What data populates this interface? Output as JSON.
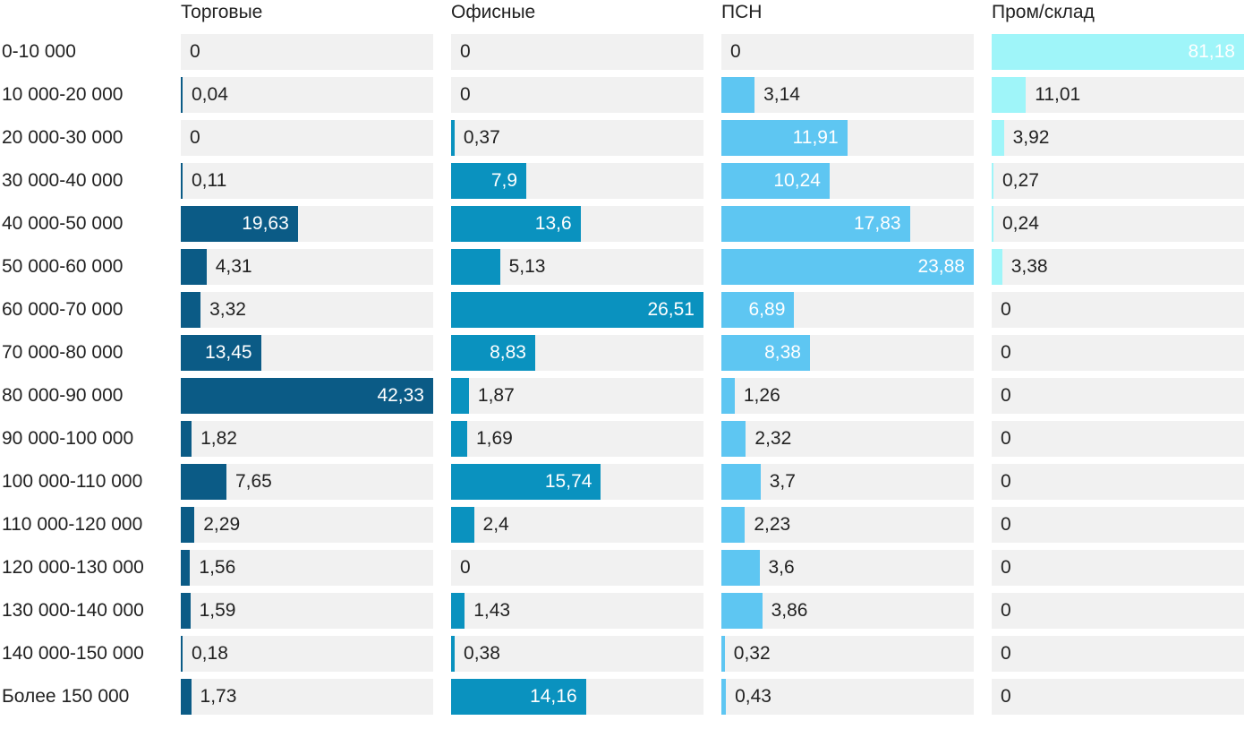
{
  "chart_data": {
    "type": "bar",
    "orientation": "horizontal",
    "layout": "small-multiples",
    "categories": [
      "0-10 000",
      "10 000-20 000",
      "20 000-30 000",
      "30 000-40 000",
      "40 000-50 000",
      "50 000-60 000",
      "60 000-70 000",
      "70 000-80 000",
      "80 000-90 000",
      "90 000-100 000",
      "100 000-110 000",
      "110 000-120 000",
      "120 000-130 000",
      "130 000-140 000",
      "140 000-150 000",
      "Более 150 000"
    ],
    "series": [
      {
        "name": "Торговые",
        "color": "#0b5b86",
        "max": 42.33,
        "values": [
          0,
          0.04,
          0,
          0.11,
          19.63,
          4.31,
          3.32,
          13.45,
          42.33,
          1.82,
          7.65,
          2.29,
          1.56,
          1.59,
          0.18,
          1.73
        ],
        "labels": [
          "0",
          "0,04",
          "0",
          "0,11",
          "19,63",
          "4,31",
          "3,32",
          "13,45",
          "42,33",
          "1,82",
          "7,65",
          "2,29",
          "1,56",
          "1,59",
          "0,18",
          "1,73"
        ]
      },
      {
        "name": "Офисные",
        "color": "#0a92bf",
        "max": 26.51,
        "values": [
          0,
          0,
          0.37,
          7.9,
          13.6,
          5.13,
          26.51,
          8.83,
          1.87,
          1.69,
          15.74,
          2.4,
          0,
          1.43,
          0.38,
          14.16
        ],
        "labels": [
          "0",
          "0",
          "0,37",
          "7,9",
          "13,6",
          "5,13",
          "26,51",
          "8,83",
          "1,87",
          "1,69",
          "15,74",
          "2,4",
          "0",
          "1,43",
          "0,38",
          "14,16"
        ]
      },
      {
        "name": "ПСН",
        "color": "#5ec6f2",
        "max": 23.88,
        "values": [
          0,
          3.14,
          11.91,
          10.24,
          17.83,
          23.88,
          6.89,
          8.38,
          1.26,
          2.32,
          3.7,
          2.23,
          3.6,
          3.86,
          0.32,
          0.43
        ],
        "labels": [
          "0",
          "3,14",
          "11,91",
          "10,24",
          "17,83",
          "23,88",
          "6,89",
          "8,38",
          "1,26",
          "2,32",
          "3,7",
          "2,23",
          "3,6",
          "3,86",
          "0,32",
          "0,43"
        ]
      },
      {
        "name": "Пром/склад",
        "color": "#9ff5f9",
        "max": 81.18,
        "values": [
          81.18,
          11.01,
          3.92,
          0.27,
          0.24,
          3.38,
          0,
          0,
          0,
          0,
          0,
          0,
          0,
          0,
          0,
          0
        ],
        "labels": [
          "81,18",
          "11,01",
          "3,92",
          "0,27",
          "0,24",
          "3,38",
          "0",
          "0",
          "0",
          "0",
          "0",
          "0",
          "0",
          "0",
          "0",
          "0"
        ]
      }
    ],
    "title": "",
    "xlabel": "",
    "ylabel": "",
    "grid": false,
    "legend": "none"
  }
}
